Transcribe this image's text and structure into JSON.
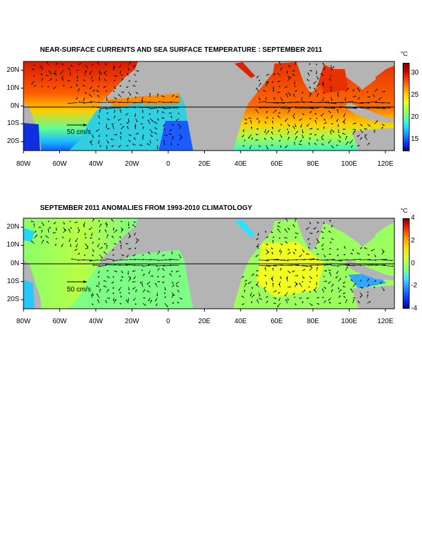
{
  "panels": [
    {
      "title": "NEAR-SURFACE CURRENTS AND SEA SURFACE TEMPERATURE : SEPTEMBER 2011",
      "unit": "°C",
      "colorbar_ticks": [
        "30",
        "25",
        "20",
        "15"
      ],
      "colorbar_colors": [
        "#7a0000",
        "#d10000",
        "#ff3a00",
        "#ff8c00",
        "#ffd400",
        "#e9ff1a",
        "#9bff5a",
        "#4dffb0",
        "#18e0ff",
        "#1f8dff",
        "#0a3cff",
        "#0000a8"
      ],
      "vector_scale_label": "50 cm/s"
    },
    {
      "title": "SEPTEMBER 2011 ANOMALIES FROM 1993-2010 CLIMATOLOGY",
      "unit": "°C",
      "colorbar_ticks": [
        "4",
        "2",
        "0",
        "-2",
        "-4"
      ],
      "colorbar_colors": [
        "#7a0000",
        "#ff2a00",
        "#ffa000",
        "#ffe000",
        "#caff3a",
        "#8cff7a",
        "#3fe6ff",
        "#1f8dff",
        "#0a3cff",
        "#0000a8"
      ],
      "vector_scale_label": "50 cm/s"
    }
  ],
  "map": {
    "lon_labels": [
      "80W",
      "60W",
      "40W",
      "20W",
      "0",
      "20E",
      "40E",
      "60E",
      "80E",
      "100E",
      "120E"
    ],
    "lat_labels": [
      "20N",
      "10N",
      "0N",
      "10S",
      "20S"
    ],
    "lon_range": [
      -80,
      125
    ],
    "lat_range": [
      -25,
      25
    ],
    "colors": {
      "land": "#b4b4b4",
      "frame": "#000000",
      "vector": "#000000"
    }
  }
}
